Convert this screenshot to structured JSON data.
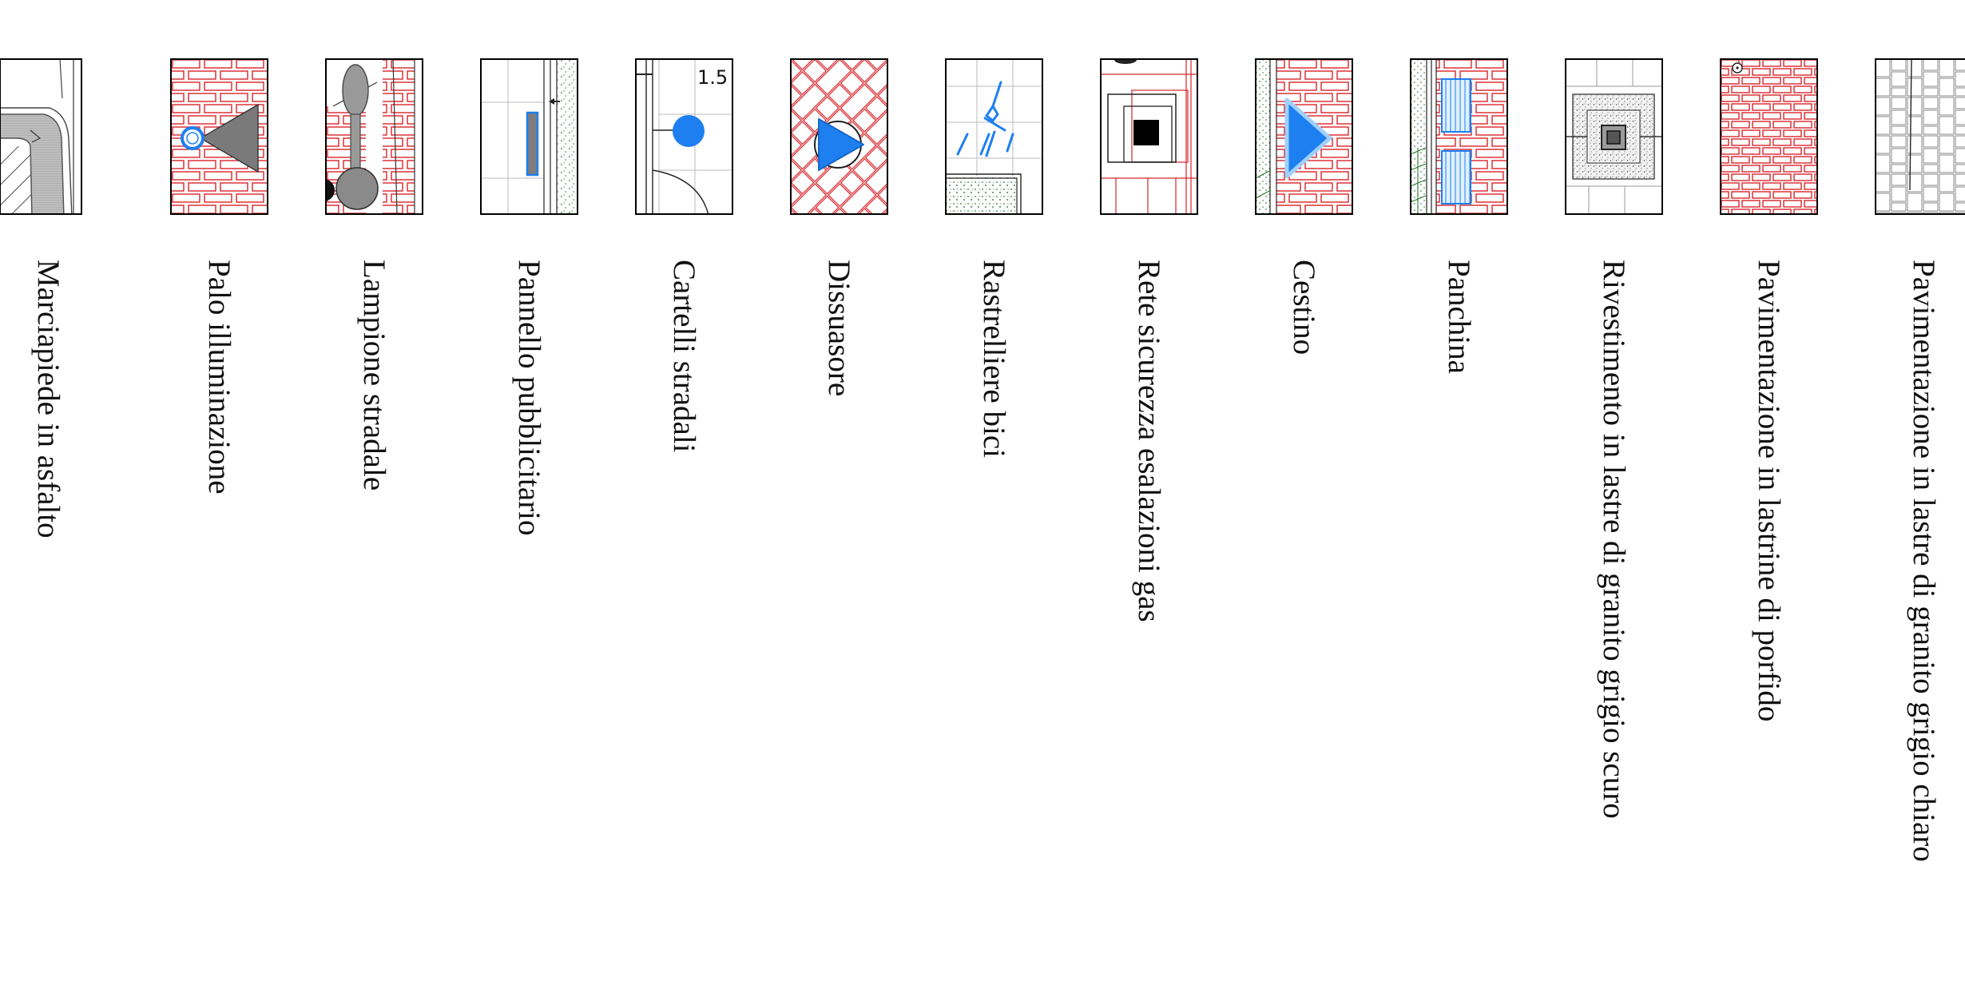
{
  "legend": {
    "items": [
      {
        "id": "sidewalk",
        "label": "Marciapiede in asfalto"
      },
      {
        "id": "light-pole",
        "label": "Palo illuminazione"
      },
      {
        "id": "street-lamp",
        "label": "Lampione stradale"
      },
      {
        "id": "billboard",
        "label": "Pannello pubblicitario"
      },
      {
        "id": "road-signs",
        "label": "Cartelli stradali"
      },
      {
        "id": "bollard",
        "label": "Dissuasore"
      },
      {
        "id": "bike-rack",
        "label": "Rastrelliere bici"
      },
      {
        "id": "gas-vent-net",
        "label": "Rete sicurezza esalazioni gas"
      },
      {
        "id": "bin",
        "label": "Cestino"
      },
      {
        "id": "bench",
        "label": "Panchina"
      },
      {
        "id": "dark-granite",
        "label": "Rivestimento in lastre di granito grigio scuro"
      },
      {
        "id": "porphyry",
        "label": "Pavimentazione in lastrine di porfido"
      },
      {
        "id": "light-granite",
        "label": "Pavimentazione in lastre di granito grigio chiaro"
      }
    ],
    "sign_value": "1.5",
    "colors": {
      "brick": "#d8242a",
      "accent_blue": "#1e7ff0",
      "grey_fill": "#8a8a8a",
      "green_dots": "#2e7d32",
      "frame": "#000000"
    }
  }
}
